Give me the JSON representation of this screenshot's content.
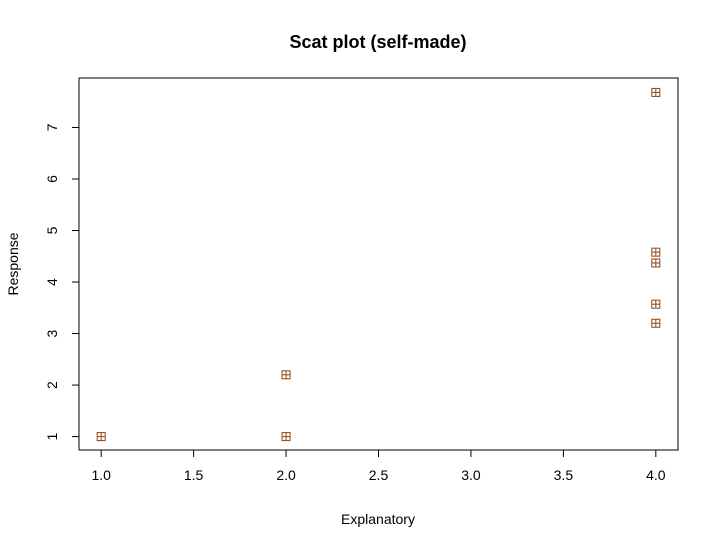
{
  "chart_data": {
    "type": "scatter",
    "title": "Scat plot (self-made)",
    "xlabel": "Explanatory",
    "ylabel": "Response",
    "xlim": [
      0.88,
      4.12
    ],
    "ylim": [
      0.74,
      7.96
    ],
    "x_ticks": [
      1.0,
      1.5,
      2.0,
      2.5,
      3.0,
      3.5,
      4.0
    ],
    "x_tick_labels": [
      "1.0",
      "1.5",
      "2.0",
      "2.5",
      "3.0",
      "3.5",
      "4.0"
    ],
    "y_ticks": [
      1,
      2,
      3,
      4,
      5,
      6,
      7
    ],
    "y_tick_labels": [
      "1",
      "2",
      "3",
      "4",
      "5",
      "6",
      "7"
    ],
    "grid": false,
    "marker": "square-plus",
    "marker_color": "#8B4513",
    "points": [
      {
        "x": 1.0,
        "y": 1.0
      },
      {
        "x": 2.0,
        "y": 1.0
      },
      {
        "x": 2.0,
        "y": 2.2
      },
      {
        "x": 4.0,
        "y": 3.2
      },
      {
        "x": 4.0,
        "y": 3.57
      },
      {
        "x": 4.0,
        "y": 4.37
      },
      {
        "x": 4.0,
        "y": 4.58
      },
      {
        "x": 4.0,
        "y": 7.68
      }
    ]
  }
}
